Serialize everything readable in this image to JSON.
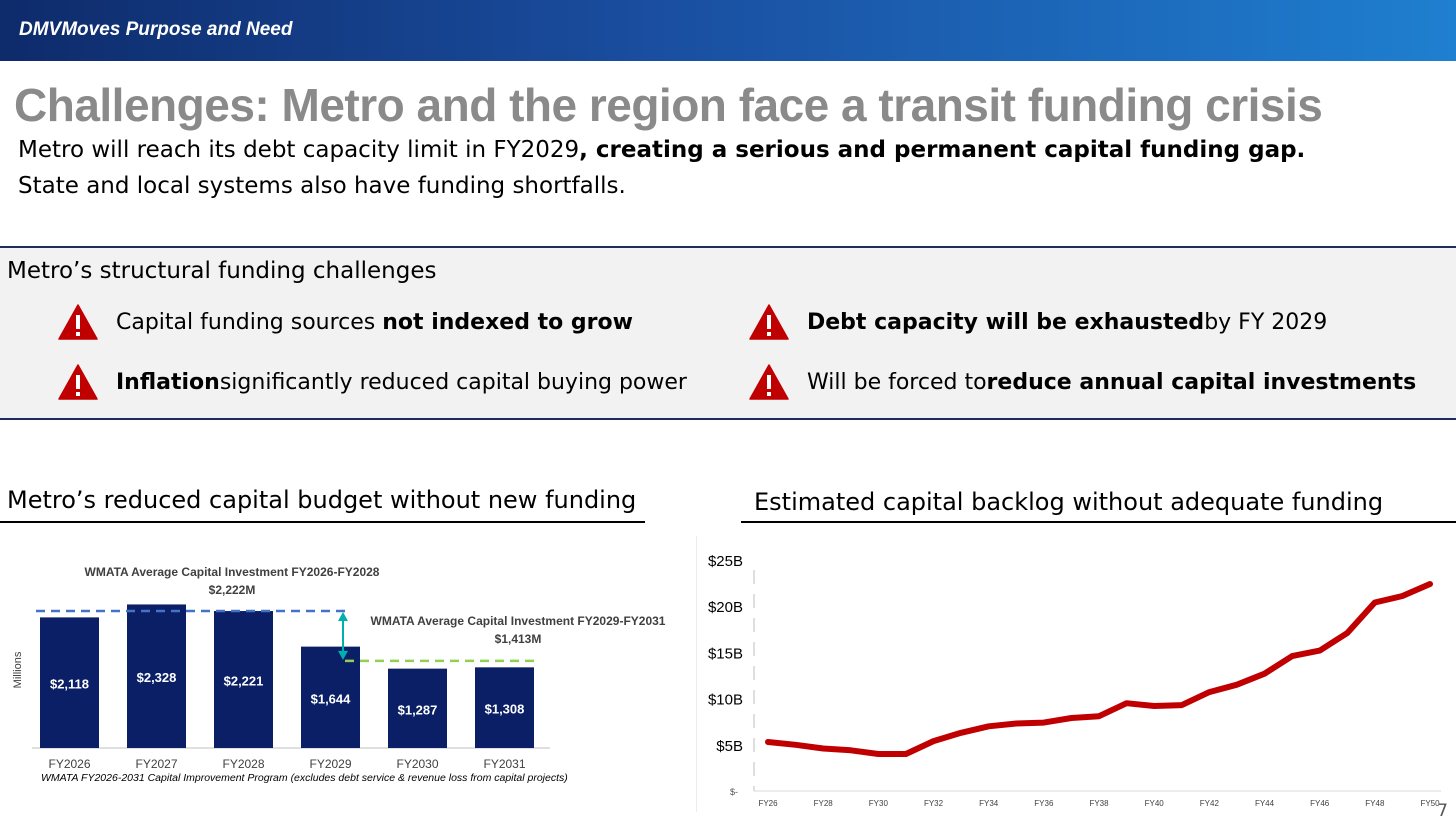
{
  "header": {
    "title": "DMVMoves Purpose and Need"
  },
  "headline": "Challenges: Metro and the region face a transit funding crisis",
  "subtitle": {
    "line1_plain": "Metro will reach its debt capacity limit in FY2029",
    "line1_bold": ", creating a serious and permanent capital funding gap.",
    "line2": "State and local systems also have funding shortfalls."
  },
  "challenges": {
    "title": "Metro’s structural funding challenges",
    "items": [
      {
        "pre": "Capital funding sources ",
        "bold": "not indexed to grow",
        "post": ""
      },
      {
        "pre": "",
        "bold": "Inflation",
        "post": " significantly reduced capital buying power"
      },
      {
        "pre": "",
        "bold": "Debt capacity will be exhausted",
        "post": " by FY 2029"
      },
      {
        "pre": "Will be forced to ",
        "bold": "reduce annual capital investments",
        "post": ""
      }
    ]
  },
  "left_section": {
    "title": "Metro’s reduced capital budget without new funding"
  },
  "right_section": {
    "title": "Estimated capital backlog without adequate funding"
  },
  "colors": {
    "bar": "#0b1f66",
    "avg1": "#4472c4",
    "avg2": "#92d050",
    "arrow": "#00b0b0",
    "line": "#c00000",
    "warning": "#c00000"
  },
  "chart_data": [
    {
      "type": "bar",
      "categories": [
        "FY2026",
        "FY2027",
        "FY2028",
        "FY2029",
        "FY2030",
        "FY2031"
      ],
      "values": [
        2118,
        2328,
        2221,
        1644,
        1287,
        1308
      ],
      "value_labels": [
        "$2,118",
        "$2,328",
        "$2,221",
        "$1,644",
        "$1,287",
        "$1,308"
      ],
      "ylabel": "Millions",
      "ylim": [
        0,
        2400
      ],
      "annotations": [
        {
          "text": "WMATA Average Capital Investment FY2026-FY2028",
          "value_text": "$2,222M",
          "value": 2222
        },
        {
          "text": "WMATA Average Capital Investment FY2029-FY2031",
          "value_text": "$1,413M",
          "value": 1413
        }
      ],
      "source": "WMATA FY2026-2031 Capital Improvement Program  (excludes debt service & revenue loss from capital projects)"
    },
    {
      "type": "line",
      "x": [
        2026,
        2027,
        2028,
        2029,
        2030,
        2031,
        2032,
        2033,
        2034,
        2035,
        2036,
        2037,
        2038,
        2039,
        2040,
        2041,
        2042,
        2043,
        2044,
        2045,
        2046,
        2047,
        2048,
        2049,
        2050
      ],
      "values": [
        5.3,
        5.0,
        4.6,
        4.4,
        4.0,
        4.0,
        5.4,
        6.3,
        7.0,
        7.3,
        7.4,
        7.9,
        8.1,
        9.5,
        9.2,
        9.3,
        10.7,
        11.5,
        12.7,
        14.6,
        15.2,
        17.1,
        20.4,
        21.1,
        22.4
      ],
      "x_ticks": [
        "FY26",
        "FY28",
        "FY30",
        "FY32",
        "FY34",
        "FY36",
        "FY38",
        "FY40",
        "FY42",
        "FY44",
        "FY46",
        "FY48",
        "FY50"
      ],
      "y_ticks": [
        "$-",
        "$5B",
        "$10B",
        "$15B",
        "$20B",
        "$25B"
      ],
      "ylim": [
        0,
        25
      ]
    }
  ],
  "page_number": "7"
}
